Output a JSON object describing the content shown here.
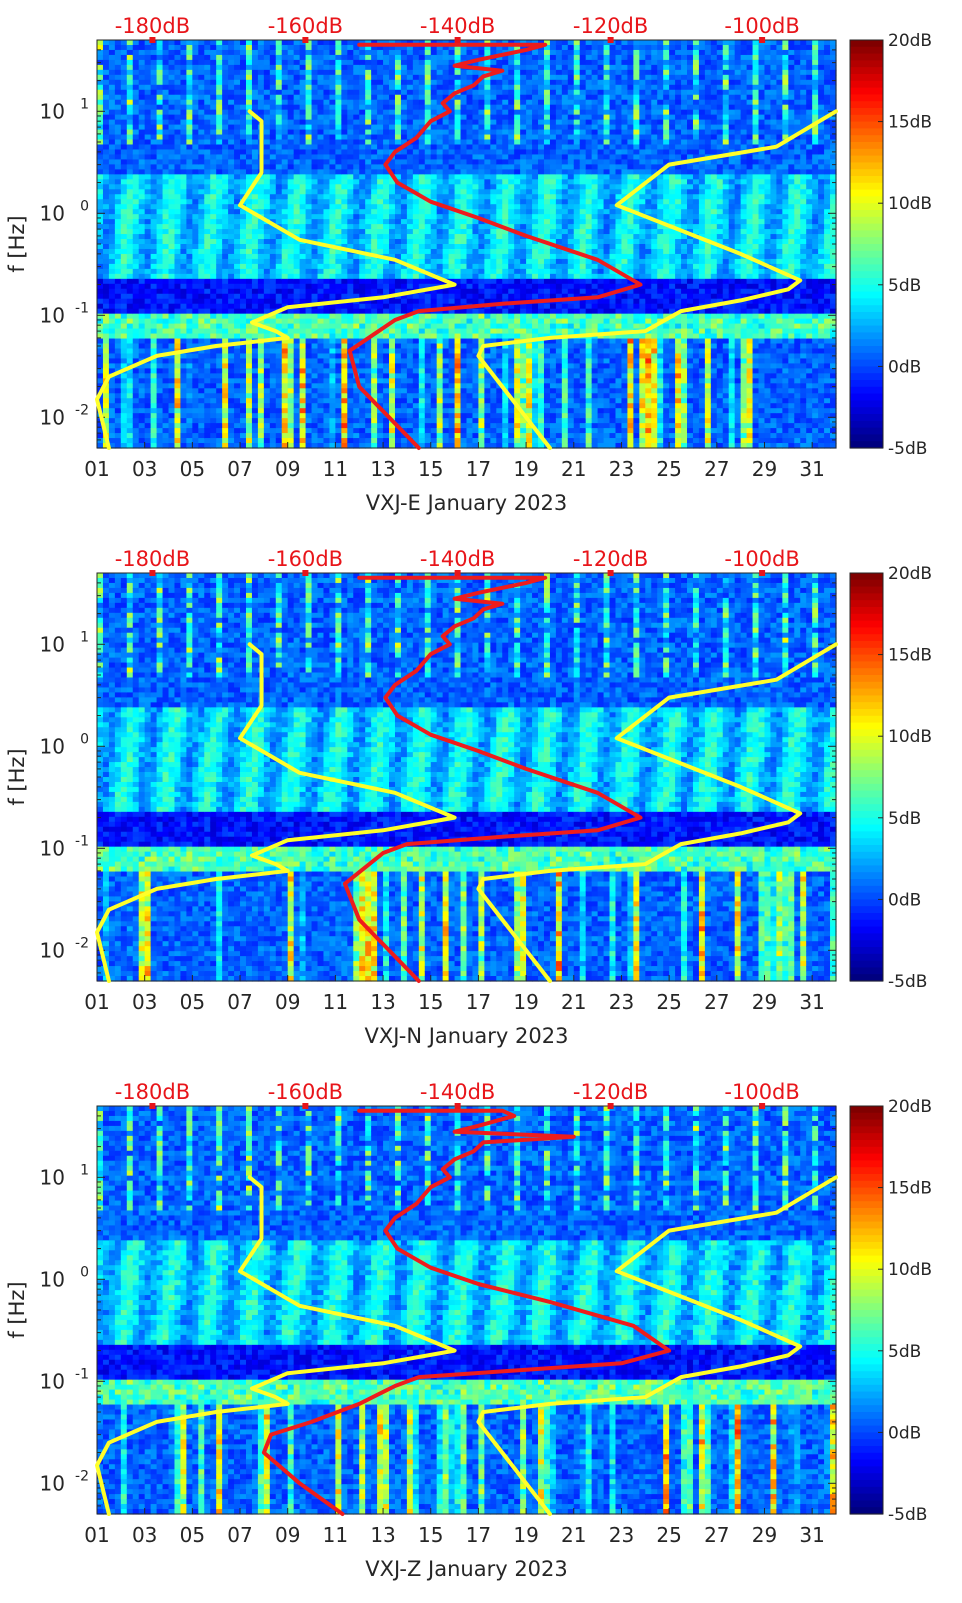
{
  "chart_data": [
    {
      "type": "heatmap",
      "title": "",
      "xlabel": "VXJ-E January 2023",
      "ylabel": "f [Hz]",
      "x_scale": "day of month",
      "xlim": [
        1,
        32
      ],
      "x_tick_labels": [
        "01",
        "03",
        "05",
        "07",
        "09",
        "11",
        "13",
        "15",
        "17",
        "19",
        "21",
        "23",
        "25",
        "27",
        "29",
        "31"
      ],
      "y_scale": "log",
      "ylim": [
        0.005,
        50
      ],
      "y_tick_labels": [
        "10^-2",
        "10^-1",
        "10^0",
        "10^1"
      ],
      "top_axis_labels": [
        "-180dB",
        "-160dB",
        "-140dB",
        "-120dB",
        "-100dB"
      ],
      "colorbar": {
        "colormap": "jet",
        "range": [
          -5,
          20
        ],
        "tick_labels": [
          "20dB",
          "15dB",
          "10dB",
          "5dB",
          "0dB",
          "-5dB"
        ]
      },
      "overlay_lines": [
        {
          "color": "#ffff2a",
          "points": [
            [
              7.4,
              10
            ],
            [
              7.9,
              8
            ],
            [
              7.9,
              2.5
            ],
            [
              7.0,
              1.2
            ],
            [
              9.5,
              0.55
            ],
            [
              13.5,
              0.35
            ],
            [
              16.0,
              0.2
            ],
            [
              13.0,
              0.15
            ],
            [
              9.0,
              0.12
            ],
            [
              7.5,
              0.085
            ],
            [
              8.5,
              0.07
            ],
            [
              9.0,
              0.06
            ],
            [
              6.0,
              0.05
            ],
            [
              3.5,
              0.04
            ],
            [
              1.5,
              0.025
            ],
            [
              1.0,
              0.015
            ],
            [
              1.5,
              0.005
            ]
          ]
        },
        {
          "color": "#ffff2a",
          "points": [
            [
              20.0,
              0.005
            ],
            [
              17.0,
              0.04
            ],
            [
              17.2,
              0.05
            ],
            [
              20.0,
              0.06
            ],
            [
              24.0,
              0.07
            ],
            [
              25.5,
              0.11
            ],
            [
              28.0,
              0.14
            ],
            [
              30.0,
              0.18
            ],
            [
              30.5,
              0.22
            ],
            [
              28.0,
              0.4
            ],
            [
              22.8,
              1.2
            ],
            [
              25.0,
              3.0
            ],
            [
              29.5,
              4.5
            ],
            [
              32.0,
              10
            ]
          ]
        },
        {
          "color": "#ee1c1c",
          "points": [
            [
              14.5,
              0.005
            ],
            [
              12.0,
              0.02
            ],
            [
              11.6,
              0.045
            ],
            [
              13.5,
              0.09
            ],
            [
              14.5,
              0.11
            ],
            [
              18.0,
              0.13
            ],
            [
              22.0,
              0.15
            ],
            [
              23.8,
              0.2
            ],
            [
              22.0,
              0.35
            ],
            [
              19.0,
              0.6
            ],
            [
              17.0,
              0.9
            ],
            [
              15.0,
              1.3
            ],
            [
              13.6,
              2.0
            ],
            [
              13.1,
              3.0
            ],
            [
              13.5,
              4.0
            ],
            [
              14.4,
              5.5
            ],
            [
              15.0,
              8.0
            ],
            [
              15.8,
              10.0
            ],
            [
              15.5,
              12.0
            ],
            [
              16.0,
              15.0
            ],
            [
              16.8,
              18.0
            ],
            [
              17.2,
              22.0
            ],
            [
              18.0,
              25.0
            ],
            [
              16.0,
              28.0
            ],
            [
              17.0,
              32.0
            ],
            [
              19.0,
              40.0
            ],
            [
              19.8,
              45.0
            ],
            [
              12.0,
              45.0
            ]
          ]
        }
      ]
    },
    {
      "type": "heatmap",
      "title": "",
      "xlabel": "VXJ-N January 2023",
      "ylabel": "f [Hz]",
      "x_scale": "day of month",
      "xlim": [
        1,
        32
      ],
      "x_tick_labels": [
        "01",
        "03",
        "05",
        "07",
        "09",
        "11",
        "13",
        "15",
        "17",
        "19",
        "21",
        "23",
        "25",
        "27",
        "29",
        "31"
      ],
      "y_scale": "log",
      "ylim": [
        0.005,
        50
      ],
      "y_tick_labels": [
        "10^-2",
        "10^-1",
        "10^0",
        "10^1"
      ],
      "top_axis_labels": [
        "-180dB",
        "-160dB",
        "-140dB",
        "-120dB",
        "-100dB"
      ],
      "colorbar": {
        "colormap": "jet",
        "range": [
          -5,
          20
        ],
        "tick_labels": [
          "20dB",
          "15dB",
          "10dB",
          "5dB",
          "0dB",
          "-5dB"
        ]
      },
      "overlay_lines": [
        {
          "color": "#ffff2a",
          "points": [
            [
              7.4,
              10
            ],
            [
              7.9,
              8
            ],
            [
              7.9,
              2.5
            ],
            [
              7.0,
              1.2
            ],
            [
              9.5,
              0.55
            ],
            [
              13.5,
              0.35
            ],
            [
              16.0,
              0.2
            ],
            [
              13.0,
              0.15
            ],
            [
              9.0,
              0.12
            ],
            [
              7.5,
              0.085
            ],
            [
              8.5,
              0.07
            ],
            [
              9.0,
              0.06
            ],
            [
              6.0,
              0.05
            ],
            [
              3.5,
              0.04
            ],
            [
              1.5,
              0.025
            ],
            [
              1.0,
              0.015
            ],
            [
              1.5,
              0.005
            ]
          ]
        },
        {
          "color": "#ffff2a",
          "points": [
            [
              20.0,
              0.005
            ],
            [
              17.0,
              0.04
            ],
            [
              17.2,
              0.05
            ],
            [
              20.0,
              0.06
            ],
            [
              24.0,
              0.07
            ],
            [
              25.5,
              0.11
            ],
            [
              28.0,
              0.14
            ],
            [
              30.0,
              0.18
            ],
            [
              30.5,
              0.22
            ],
            [
              28.0,
              0.4
            ],
            [
              22.8,
              1.2
            ],
            [
              25.0,
              3.0
            ],
            [
              29.5,
              4.5
            ],
            [
              32.0,
              10
            ]
          ]
        },
        {
          "color": "#ee1c1c",
          "points": [
            [
              14.5,
              0.005
            ],
            [
              12.0,
              0.02
            ],
            [
              11.4,
              0.045
            ],
            [
              13.0,
              0.09
            ],
            [
              14.0,
              0.11
            ],
            [
              18.0,
              0.13
            ],
            [
              22.0,
              0.15
            ],
            [
              23.8,
              0.2
            ],
            [
              22.0,
              0.35
            ],
            [
              19.0,
              0.6
            ],
            [
              17.0,
              0.9
            ],
            [
              15.0,
              1.3
            ],
            [
              13.6,
              2.0
            ],
            [
              13.1,
              3.0
            ],
            [
              13.5,
              4.0
            ],
            [
              14.4,
              5.5
            ],
            [
              15.0,
              8.0
            ],
            [
              15.8,
              10.0
            ],
            [
              15.5,
              12.0
            ],
            [
              16.0,
              15.0
            ],
            [
              16.8,
              18.0
            ],
            [
              17.2,
              22.0
            ],
            [
              18.0,
              25.0
            ],
            [
              16.0,
              28.0
            ],
            [
              17.0,
              32.0
            ],
            [
              19.0,
              40.0
            ],
            [
              19.8,
              45.0
            ],
            [
              12.0,
              45.0
            ]
          ]
        }
      ]
    },
    {
      "type": "heatmap",
      "title": "",
      "xlabel": "VXJ-Z January 2023",
      "ylabel": "f [Hz]",
      "x_scale": "day of month",
      "xlim": [
        1,
        32
      ],
      "x_tick_labels": [
        "01",
        "03",
        "05",
        "07",
        "09",
        "11",
        "13",
        "15",
        "17",
        "19",
        "21",
        "23",
        "25",
        "27",
        "29",
        "31"
      ],
      "y_scale": "log",
      "ylim": [
        0.005,
        50
      ],
      "y_tick_labels": [
        "10^-2",
        "10^-1",
        "10^0",
        "10^1"
      ],
      "top_axis_labels": [
        "-180dB",
        "-160dB",
        "-140dB",
        "-120dB",
        "-100dB"
      ],
      "colorbar": {
        "colormap": "jet",
        "range": [
          -5,
          20
        ],
        "tick_labels": [
          "20dB",
          "15dB",
          "10dB",
          "5dB",
          "0dB",
          "-5dB"
        ]
      },
      "overlay_lines": [
        {
          "color": "#ffff2a",
          "points": [
            [
              7.4,
              10
            ],
            [
              7.9,
              8
            ],
            [
              7.9,
              2.5
            ],
            [
              7.0,
              1.2
            ],
            [
              9.5,
              0.55
            ],
            [
              13.5,
              0.35
            ],
            [
              16.0,
              0.2
            ],
            [
              13.0,
              0.15
            ],
            [
              9.0,
              0.12
            ],
            [
              7.5,
              0.085
            ],
            [
              8.5,
              0.07
            ],
            [
              9.0,
              0.06
            ],
            [
              6.0,
              0.05
            ],
            [
              3.5,
              0.04
            ],
            [
              1.5,
              0.025
            ],
            [
              1.0,
              0.015
            ],
            [
              1.5,
              0.005
            ]
          ]
        },
        {
          "color": "#ffff2a",
          "points": [
            [
              20.0,
              0.005
            ],
            [
              17.0,
              0.04
            ],
            [
              17.2,
              0.05
            ],
            [
              20.0,
              0.06
            ],
            [
              24.0,
              0.07
            ],
            [
              25.5,
              0.11
            ],
            [
              28.0,
              0.14
            ],
            [
              30.0,
              0.18
            ],
            [
              30.5,
              0.22
            ],
            [
              28.0,
              0.4
            ],
            [
              22.8,
              1.2
            ],
            [
              25.0,
              3.0
            ],
            [
              29.5,
              4.5
            ],
            [
              32.0,
              10
            ]
          ]
        },
        {
          "color": "#ee1c1c",
          "points": [
            [
              11.3,
              0.005
            ],
            [
              9.5,
              0.01
            ],
            [
              8.0,
              0.02
            ],
            [
              8.3,
              0.03
            ],
            [
              10.0,
              0.04
            ],
            [
              12.0,
              0.06
            ],
            [
              13.5,
              0.09
            ],
            [
              14.5,
              0.11
            ],
            [
              19.0,
              0.13
            ],
            [
              23.0,
              0.15
            ],
            [
              25.0,
              0.2
            ],
            [
              23.5,
              0.35
            ],
            [
              20.0,
              0.6
            ],
            [
              17.0,
              0.9
            ],
            [
              15.0,
              1.3
            ],
            [
              13.6,
              2.0
            ],
            [
              13.1,
              3.0
            ],
            [
              13.5,
              4.0
            ],
            [
              14.4,
              5.5
            ],
            [
              15.0,
              8.0
            ],
            [
              15.8,
              10.0
            ],
            [
              15.5,
              12.0
            ],
            [
              16.0,
              15.0
            ],
            [
              16.8,
              18.0
            ],
            [
              17.2,
              22.0
            ],
            [
              21.0,
              25.0
            ],
            [
              16.0,
              28.0
            ],
            [
              17.0,
              32.0
            ],
            [
              18.5,
              40.0
            ],
            [
              18.0,
              45.0
            ],
            [
              12.0,
              45.0
            ]
          ]
        }
      ]
    }
  ]
}
